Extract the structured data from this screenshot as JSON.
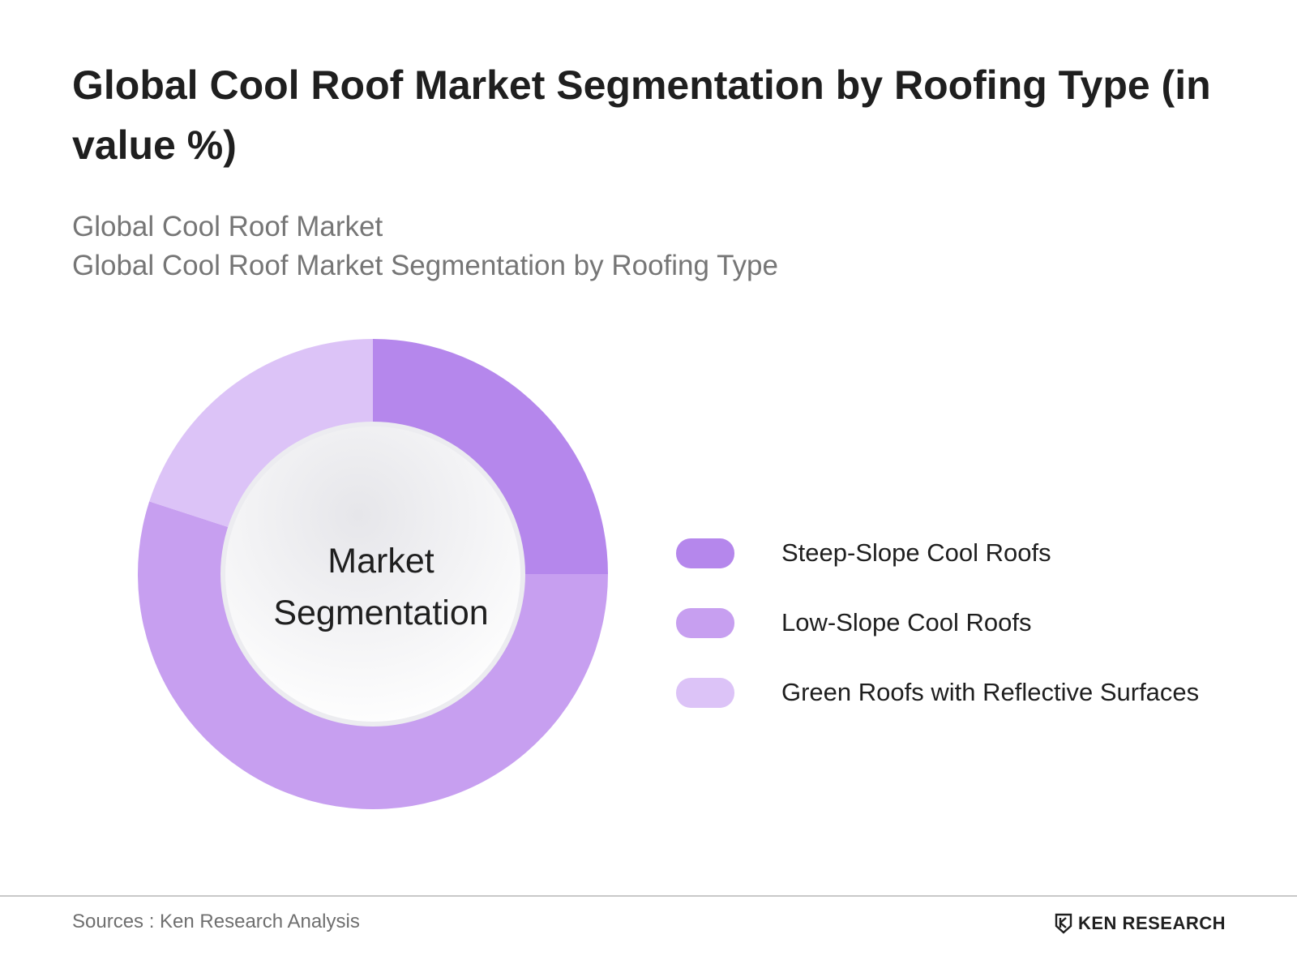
{
  "title": "Global Cool Roof Market Segmentation by Roofing Type (in value %)",
  "subtitle_lines": [
    "Global Cool Roof Market",
    "Global Cool Roof Market Segmentation by Roofing Type"
  ],
  "center_label_lines": [
    "Market",
    "Segmentation"
  ],
  "chart_data": {
    "type": "pie",
    "style": "donut",
    "title": "Global Cool Roof Market Segmentation by Roofing Type (in value %)",
    "categories": [
      "Steep-Slope Cool Roofs",
      "Low-Slope Cool Roofs",
      "Green Roofs with Reflective Surfaces"
    ],
    "values": [
      25,
      55,
      20
    ],
    "unit": "%",
    "colors": [
      "#b587ec",
      "#c79ff0",
      "#dcc3f7"
    ],
    "legend_position": "right",
    "start_angle": "12 o'clock",
    "direction": "clockwise"
  },
  "footer": {
    "source": "Sources : Ken Research Analysis",
    "brand": "KEN RESEARCH"
  }
}
